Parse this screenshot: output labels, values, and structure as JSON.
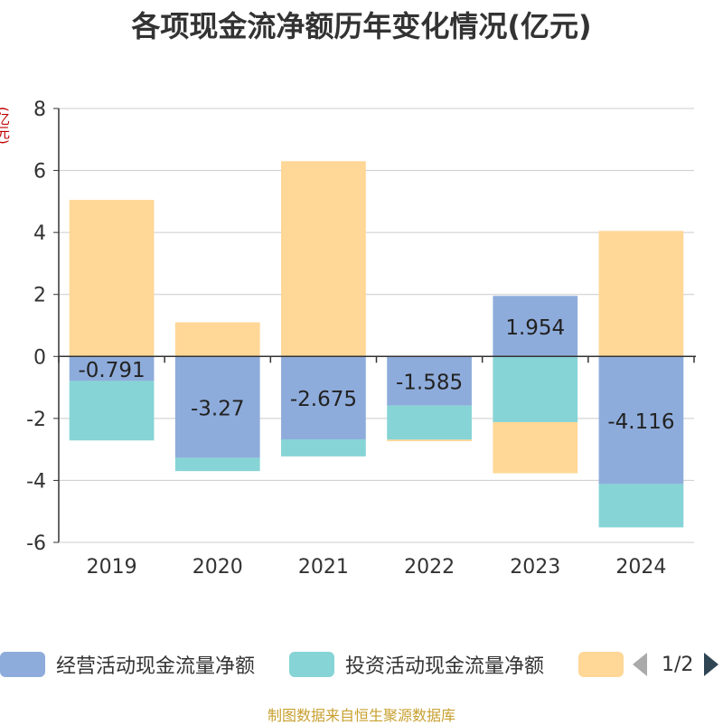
{
  "title": "各项现金流净额历年变化情况(亿元)",
  "unit_label": "(亿元)",
  "footer": "制图数据来自恒生聚源数据库",
  "legend": {
    "page_text": "1/2"
  },
  "colors": {
    "operating": "#8eacdb",
    "investing": "#86d4d6",
    "financing": "#ffd796",
    "axis": "#333333",
    "grid": "#cccccc"
  },
  "chart_data": {
    "type": "bar",
    "stacked": true,
    "categories": [
      "2019",
      "2020",
      "2021",
      "2022",
      "2023",
      "2024"
    ],
    "series": [
      {
        "name": "经营活动现金流量净额",
        "values": [
          -0.791,
          -3.27,
          -2.675,
          -1.585,
          1.954,
          -4.116
        ],
        "show_labels": true
      },
      {
        "name": "投资活动现金流量净额",
        "values": [
          -1.92,
          -0.43,
          -0.55,
          -1.1,
          -2.12,
          -1.4
        ]
      },
      {
        "name": "",
        "values": [
          5.05,
          1.1,
          6.3,
          -0.05,
          -1.65,
          4.05
        ]
      }
    ],
    "ylim": [
      -6,
      8
    ],
    "yticks": [
      -6,
      -4,
      -2,
      0,
      2,
      4,
      6,
      8
    ],
    "grid": true,
    "legend_position": "bottom"
  }
}
